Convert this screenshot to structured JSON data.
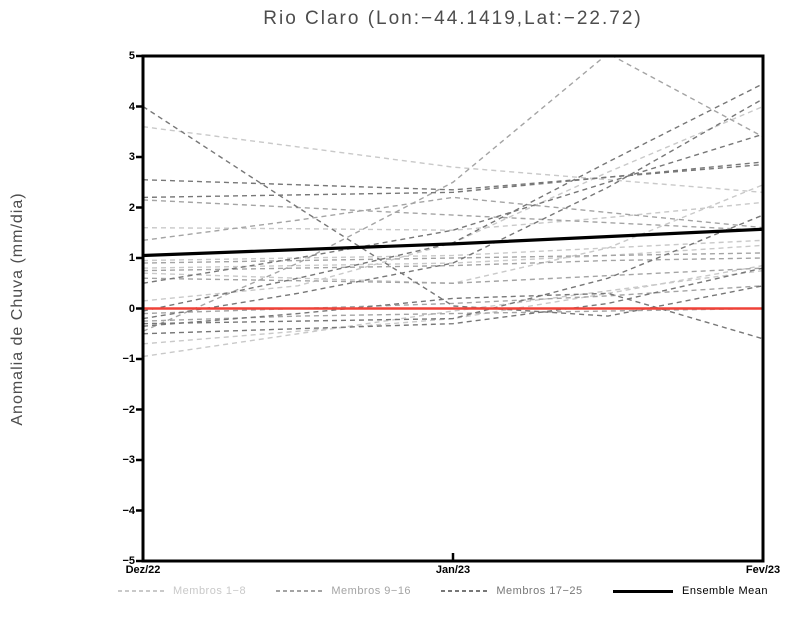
{
  "title": "Rio Claro (Lon:−44.1419,Lat:−22.72)",
  "y_axis_label": "Anomalia de Chuva (mm/dia)",
  "legend": {
    "items": [
      {
        "label": "Membros 1−8",
        "color": "#c9c9c9",
        "style": "dashed"
      },
      {
        "label": "Membros 9−16",
        "color": "#a4a4a4",
        "style": "dashed"
      },
      {
        "label": "Membros 17−25",
        "color": "#777777",
        "style": "dashed"
      },
      {
        "label": "Ensemble Mean",
        "color": "#000000",
        "style": "solid"
      }
    ]
  },
  "colors": {
    "frame": "#000000",
    "zero_line": "#ef4238",
    "title_text": "#4d4d4d",
    "members_1_8": "#c9c9c9",
    "members_9_16": "#a4a4a4",
    "members_17_25": "#777777",
    "ensemble_mean": "#000000"
  },
  "chart_data": {
    "type": "line",
    "title": "Rio Claro (Lon:-44.1419,Lat:-22.72)",
    "xlabel": "",
    "ylabel": "Anomalia de Chuva (mm/dia)",
    "ylim": [
      -5,
      5
    ],
    "y_ticks": [
      "5",
      "4",
      "3",
      "2",
      "1",
      "0",
      "−1",
      "−2",
      "−3",
      "−4",
      "−5"
    ],
    "y_tick_values": [
      5,
      4,
      3,
      2,
      1,
      0,
      -1,
      -2,
      -3,
      -4,
      -5
    ],
    "x_tick_labels": [
      "Dez/22",
      "Jan/23",
      "Fev/23"
    ],
    "x_tick_positions": [
      0,
      0.5,
      1
    ],
    "grid": false,
    "legend_position": "bottom",
    "member_x_positions": [
      0,
      0.25,
      0.5,
      0.75,
      1
    ],
    "series": [
      {
        "name": "Membros 1-8",
        "color": "#c9c9c9",
        "dashed": true,
        "members": [
          [
            3.6,
            3.2,
            2.8,
            2.55,
            2.3
          ],
          [
            1.6,
            1.58,
            1.55,
            1.8,
            2.1
          ],
          [
            0.95,
            1.0,
            1.05,
            1.2,
            1.35
          ],
          [
            0.8,
            0.85,
            0.9,
            1.05,
            1.25
          ],
          [
            0.7,
            0.6,
            0.5,
            1.2,
            2.45
          ],
          [
            0.15,
            0.45,
            1.3,
            2.7,
            4.0
          ],
          [
            -0.7,
            -0.45,
            -0.2,
            0.3,
            0.85
          ],
          [
            -0.95,
            -0.5,
            -0.05,
            0.35,
            0.75
          ]
        ]
      },
      {
        "name": "Membros 9-16",
        "color": "#a4a4a4",
        "dashed": true,
        "members": [
          [
            2.15,
            2.0,
            1.85,
            1.7,
            1.55
          ],
          [
            1.35,
            1.75,
            2.2,
            1.9,
            1.6
          ],
          [
            0.9,
            0.95,
            1.0,
            1.05,
            1.1
          ],
          [
            0.75,
            0.8,
            0.85,
            0.95,
            1.0
          ],
          [
            0.6,
            0.55,
            0.5,
            0.65,
            0.8
          ],
          [
            -0.1,
            0.0,
            0.1,
            0.25,
            0.45
          ],
          [
            -0.25,
            -0.15,
            -0.1,
            -0.05,
            0.0
          ],
          [
            -0.45,
            0.9,
            2.5,
            5.05,
            3.4
          ]
        ]
      },
      {
        "name": "Membros 17-25",
        "color": "#777777",
        "dashed": true,
        "members": [
          [
            4.0,
            2.0,
            0.05,
            -0.15,
            0.45
          ],
          [
            2.55,
            2.45,
            2.35,
            2.6,
            2.9
          ],
          [
            2.2,
            2.25,
            2.3,
            2.6,
            2.85
          ],
          [
            0.5,
            1.0,
            1.55,
            2.5,
            3.45
          ],
          [
            -0.05,
            0.6,
            1.3,
            2.9,
            4.45
          ],
          [
            -0.2,
            0.3,
            0.9,
            2.4,
            4.15
          ],
          [
            -0.3,
            -0.25,
            -0.2,
            0.6,
            1.85
          ],
          [
            -0.35,
            -0.1,
            0.2,
            0.3,
            -0.6
          ],
          [
            -0.5,
            -0.4,
            -0.3,
            0.1,
            0.8
          ]
        ]
      },
      {
        "name": "Ensemble Mean",
        "color": "#000000",
        "dashed": false,
        "x": [
          0,
          0.5,
          1
        ],
        "values": [
          1.05,
          1.28,
          1.57
        ]
      }
    ],
    "zero_line": {
      "value": 0,
      "color": "#ef4238"
    }
  }
}
